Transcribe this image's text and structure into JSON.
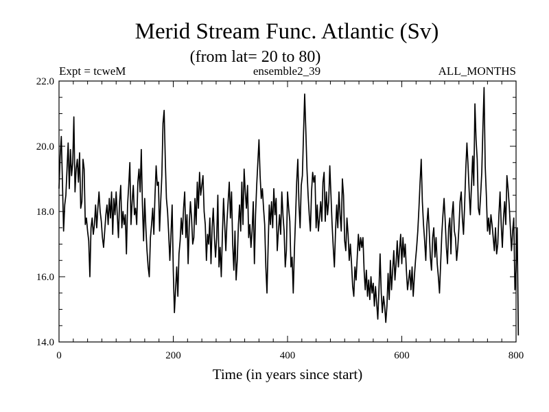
{
  "chart_data": {
    "type": "line",
    "title": "Merid Stream Func. Atlantic (Sv)",
    "subtitle": "(from lat= 20 to 80)",
    "header_left": "Expt = tcweM",
    "header_center": "ensemble2_39",
    "header_right": "ALL_MONTHS",
    "xlabel": "Time (in years since start)",
    "ylabel": "",
    "xlim": [
      0,
      800
    ],
    "ylim": [
      14,
      22
    ],
    "x_ticks": [
      0,
      200,
      400,
      600,
      800
    ],
    "x_tick_labels": [
      "0",
      "200",
      "400",
      "600",
      "800"
    ],
    "y_ticks": [
      14,
      16,
      18,
      20,
      22
    ],
    "y_tick_labels": [
      "14.0",
      "16.0",
      "18.0",
      "20.0",
      "22.0"
    ],
    "grid": false,
    "line_color": "#000000",
    "series": [
      {
        "name": "Merid Stream Func. Atlantic",
        "x_start": 0,
        "x_step": 2,
        "values": [
          18.7,
          19.7,
          20.3,
          18.9,
          17.4,
          18.2,
          18.5,
          19.3,
          20.1,
          18.7,
          19.9,
          19.1,
          19.5,
          20.9,
          18.6,
          19.3,
          19.6,
          18.9,
          19.8,
          18.1,
          18.3,
          19.6,
          19.3,
          17.6,
          17.8,
          17.4,
          17.1,
          16.0,
          17.5,
          17.8,
          17.3,
          17.6,
          18.2,
          17.5,
          18.1,
          18.6,
          18.0,
          17.7,
          17.2,
          16.9,
          17.4,
          17.9,
          18.2,
          17.6,
          18.4,
          17.8,
          18.6,
          17.3,
          18.4,
          17.9,
          18.6,
          17.9,
          17.2,
          18.3,
          18.8,
          17.5,
          18.0,
          17.6,
          17.9,
          16.7,
          18.2,
          18.8,
          19.5,
          17.6,
          18.3,
          18.8,
          17.9,
          18.1,
          17.6,
          18.9,
          19.3,
          18.6,
          19.9,
          18.2,
          17.1,
          18.4,
          17.5,
          16.8,
          16.3,
          16.0,
          17.2,
          17.6,
          18.1,
          17.3,
          18.5,
          19.4,
          18.8,
          18.9,
          17.4,
          18.3,
          19.1,
          20.7,
          21.1,
          19.6,
          18.4,
          18.0,
          17.3,
          16.5,
          17.3,
          18.2,
          16.2,
          14.9,
          15.6,
          16.3,
          15.4,
          16.7,
          17.1,
          17.8,
          17.3,
          18.1,
          18.6,
          17.2,
          17.9,
          16.4,
          17.6,
          18.3,
          17.8,
          17.0,
          17.2,
          18.4,
          17.6,
          18.9,
          18.1,
          19.2,
          18.5,
          18.8,
          19.1,
          18.0,
          17.6,
          16.5,
          17.3,
          17.0,
          17.8,
          16.4,
          17.5,
          18.1,
          17.2,
          16.6,
          17.2,
          18.5,
          16.3,
          16.9,
          16.0,
          17.3,
          18.4,
          17.6,
          16.8,
          17.7,
          18.3,
          18.9,
          17.8,
          18.6,
          17.0,
          16.2,
          17.4,
          15.9,
          16.5,
          17.6,
          18.2,
          17.4,
          18.9,
          17.6,
          19.3,
          18.6,
          18.1,
          18.8,
          17.2,
          17.6,
          16.9,
          17.4,
          18.3,
          16.4,
          17.9,
          18.8,
          19.5,
          20.2,
          19.1,
          18.4,
          18.7,
          18.1,
          17.6,
          16.3,
          15.5,
          16.9,
          18.2,
          17.6,
          18.3,
          17.5,
          18.7,
          17.9,
          18.4,
          16.8,
          17.4,
          17.9,
          17.3,
          18.6,
          17.9,
          17.4,
          16.3,
          16.8,
          18.6,
          18.1,
          17.7,
          16.3,
          16.6,
          15.5,
          16.8,
          17.8,
          18.9,
          19.6,
          18.2,
          17.5,
          18.8,
          19.1,
          20.4,
          21.6,
          20.5,
          19.3,
          18.5,
          17.9,
          17.4,
          18.6,
          19.2,
          18.9,
          19.1,
          17.5,
          18.2,
          17.4,
          17.8,
          18.3,
          17.7,
          18.9,
          19.2,
          17.7,
          18.6,
          17.9,
          18.3,
          19.4,
          18.5,
          17.6,
          16.9,
          16.3,
          17.4,
          18.2,
          17.5,
          18.6,
          17.9,
          17.4,
          19.0,
          18.5,
          17.1,
          16.8,
          17.8,
          17.3,
          16.5,
          17.0,
          16.4,
          15.7,
          15.4,
          16.3,
          15.9,
          16.6,
          17.3,
          16.8,
          17.2,
          16.9,
          17.2,
          16.2,
          15.6,
          16.2,
          15.4,
          15.9,
          15.3,
          16.0,
          15.5,
          15.8,
          15.1,
          15.7,
          15.2,
          14.7,
          15.6,
          16.7,
          15.5,
          14.9,
          15.4,
          15.1,
          14.6,
          15.1,
          16.1,
          15.3,
          16.5,
          15.6,
          16.2,
          16.8,
          15.9,
          16.4,
          17.1,
          16.3,
          16.8,
          17.3,
          16.4,
          17.2,
          16.6,
          17.0,
          16.2,
          15.6,
          15.9,
          16.2,
          15.6,
          16.3,
          15.4,
          16.0,
          16.5,
          16.9,
          17.4,
          18.1,
          18.9,
          19.6,
          18.3,
          17.6,
          17.1,
          16.5,
          17.6,
          18.1,
          17.4,
          16.6,
          16.2,
          17.2,
          17.5,
          16.6,
          17.2,
          16.4,
          16.0,
          15.5,
          16.4,
          17.3,
          17.9,
          18.4,
          17.7,
          16.9,
          16.4,
          17.5,
          17.8,
          16.7,
          17.9,
          18.3,
          17.4,
          17.2,
          16.5,
          16.9,
          17.5,
          18.3,
          18.6,
          17.8,
          17.3,
          18.2,
          19.3,
          20.1,
          19.4,
          18.6,
          17.9,
          18.8,
          19.7,
          18.8,
          21.3,
          20.2,
          19.6,
          18.1,
          17.9,
          18.5,
          19.2,
          20.6,
          21.8,
          19.4,
          18.5,
          17.4,
          17.8,
          17.3,
          17.9,
          17.6,
          17.2,
          16.8,
          17.5,
          16.7,
          17.0,
          17.9,
          18.6,
          17.6,
          16.9,
          17.8,
          18.3,
          17.6,
          19.1,
          18.7,
          18.2,
          17.5,
          16.8,
          17.4,
          17.8,
          15.6,
          16.2,
          17.5,
          14.2
        ]
      }
    ]
  }
}
